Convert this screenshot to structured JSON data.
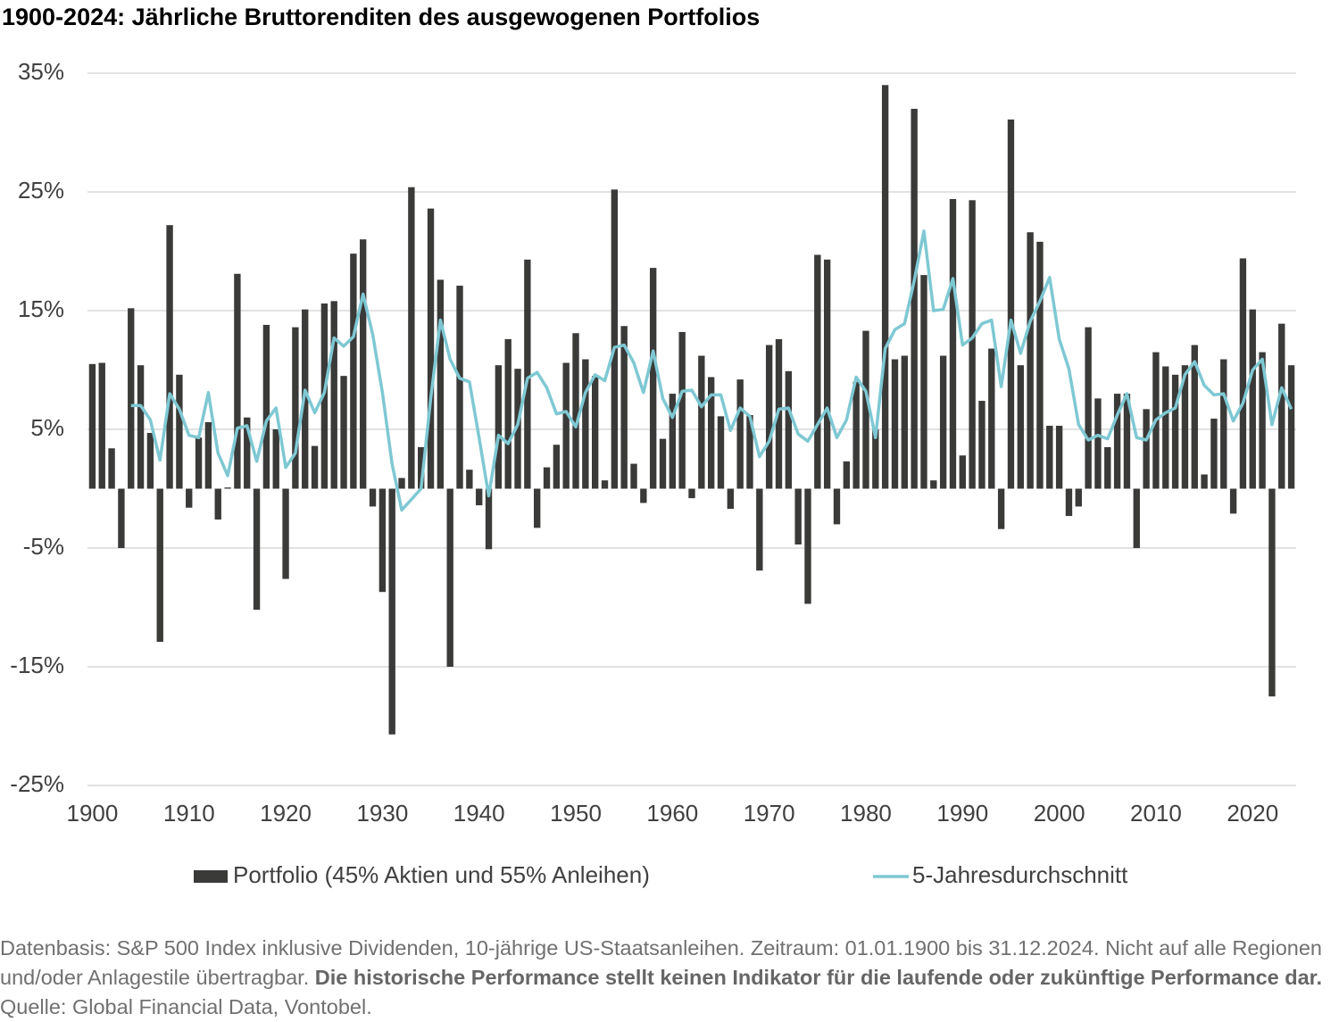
{
  "chart_data": {
    "type": "bar_line",
    "title": "1900-2024: Jährliche Bruttorenditen des ausgewogenen Portfolios",
    "x": [
      1900,
      1901,
      1902,
      1903,
      1904,
      1905,
      1906,
      1907,
      1908,
      1909,
      1910,
      1911,
      1912,
      1913,
      1914,
      1915,
      1916,
      1917,
      1918,
      1919,
      1920,
      1921,
      1922,
      1923,
      1924,
      1925,
      1926,
      1927,
      1928,
      1929,
      1930,
      1931,
      1932,
      1933,
      1934,
      1935,
      1936,
      1937,
      1938,
      1939,
      1940,
      1941,
      1942,
      1943,
      1944,
      1945,
      1946,
      1947,
      1948,
      1949,
      1950,
      1951,
      1952,
      1953,
      1954,
      1955,
      1956,
      1957,
      1958,
      1959,
      1960,
      1961,
      1962,
      1963,
      1964,
      1965,
      1966,
      1967,
      1968,
      1969,
      1970,
      1971,
      1972,
      1973,
      1974,
      1975,
      1976,
      1977,
      1978,
      1979,
      1980,
      1981,
      1982,
      1983,
      1984,
      1985,
      1986,
      1987,
      1988,
      1989,
      1990,
      1991,
      1992,
      1993,
      1994,
      1995,
      1996,
      1997,
      1998,
      1999,
      2000,
      2001,
      2002,
      2003,
      2004,
      2005,
      2006,
      2007,
      2008,
      2009,
      2010,
      2011,
      2012,
      2013,
      2014,
      2015,
      2016,
      2017,
      2018,
      2019,
      2020,
      2021,
      2022,
      2023,
      2024
    ],
    "series": [
      {
        "name": "Portfolio (45% Aktien und 55% Anleihen)",
        "type": "bar",
        "color": "#3a3a38",
        "values": [
          10.5,
          10.6,
          3.4,
          -5.0,
          15.2,
          10.4,
          4.7,
          -12.9,
          22.2,
          9.6,
          -1.6,
          4.3,
          5.6,
          -2.6,
          0.1,
          18.1,
          6.0,
          -10.2,
          13.8,
          5.0,
          -7.6,
          13.6,
          15.1,
          3.6,
          15.6,
          15.8,
          9.5,
          19.8,
          21.0,
          -1.5,
          -8.7,
          -20.7,
          0.9,
          25.4,
          3.5,
          23.6,
          17.6,
          -15.0,
          17.1,
          1.6,
          -1.4,
          -5.1,
          10.4,
          12.6,
          10.1,
          19.3,
          -3.3,
          1.8,
          3.7,
          10.6,
          13.1,
          10.9,
          9.5,
          0.7,
          25.2,
          13.7,
          2.1,
          -1.2,
          18.6,
          4.2,
          8.0,
          13.2,
          -0.8,
          11.2,
          9.4,
          6.1,
          -1.7,
          9.2,
          6.2,
          -6.9,
          12.1,
          12.6,
          9.9,
          -4.7,
          -9.7,
          19.7,
          19.3,
          -3.0,
          2.3,
          9.0,
          13.3,
          5.0,
          34.0,
          10.9,
          11.2,
          32.0,
          18.0,
          0.7,
          11.2,
          24.4,
          2.8,
          24.3,
          7.4,
          11.8,
          -3.4,
          31.1,
          10.4,
          21.6,
          20.8,
          5.3,
          5.3,
          -2.3,
          -1.5,
          13.6,
          7.6,
          3.5,
          8.0,
          8.0,
          -5.0,
          6.7,
          11.5,
          10.3,
          9.6,
          10.4,
          12.1,
          1.2,
          5.9,
          10.9,
          -2.1,
          19.4,
          15.1,
          11.5,
          -17.5,
          13.9,
          10.4
        ]
      },
      {
        "name": "5-Jahresdurchschnitt",
        "type": "line",
        "color": "#7ec8d3",
        "values": [
          null,
          null,
          null,
          null,
          7.0,
          7.0,
          5.8,
          2.4,
          8.0,
          6.7,
          4.5,
          4.3,
          8.1,
          3.0,
          1.1,
          5.1,
          5.3,
          2.3,
          5.7,
          6.8,
          1.8,
          3.0,
          8.3,
          6.4,
          8.1,
          12.7,
          12.0,
          12.8,
          16.4,
          13.0,
          8.1,
          2.1,
          -1.8,
          -0.9,
          0.0,
          7.6,
          14.2,
          10.9,
          9.3,
          9.0,
          4.3,
          -0.6,
          4.5,
          3.8,
          5.4,
          9.3,
          9.8,
          8.5,
          6.3,
          6.5,
          5.2,
          8.1,
          9.6,
          9.1,
          11.9,
          12.1,
          10.6,
          8.1,
          11.6,
          7.6,
          6.0,
          8.2,
          8.3,
          6.9,
          7.9,
          7.9,
          4.9,
          6.8,
          6.1,
          2.7,
          4.0,
          6.7,
          6.8,
          4.6,
          4.0,
          5.4,
          6.8,
          4.3,
          5.8,
          9.4,
          8.2,
          4.3,
          11.8,
          13.4,
          13.9,
          17.5,
          21.7,
          15.0,
          15.1,
          17.7,
          12.1,
          12.7,
          13.9,
          14.2,
          8.6,
          14.2,
          11.4,
          14.1,
          15.8,
          17.8,
          12.6,
          10.1,
          5.4,
          4.1,
          4.5,
          4.2,
          6.2,
          8.0,
          4.3,
          4.1,
          5.8,
          6.4,
          6.8,
          9.6,
          10.7,
          8.7,
          7.9,
          8.0,
          5.7,
          7.2,
          10.0,
          10.9,
          5.4,
          8.5,
          6.7
        ]
      }
    ],
    "xlim": [
      1899.5,
      2024.5
    ],
    "xticks": [
      1900,
      1910,
      1920,
      1930,
      1940,
      1950,
      1960,
      1970,
      1980,
      1990,
      2000,
      2010,
      2020
    ],
    "ylim": [
      -25,
      35
    ],
    "yticks": [
      {
        "value": 35,
        "label": "35%"
      },
      {
        "value": 25,
        "label": "25%"
      },
      {
        "value": 15,
        "label": "15%"
      },
      {
        "value": 5,
        "label": "5%"
      },
      {
        "value": -5,
        "label": "-5%"
      },
      {
        "value": -15,
        "label": "-15%"
      },
      {
        "value": -25,
        "label": "-25%"
      }
    ],
    "grid": true,
    "footnote": [
      "Datenbasis: S&P 500 Index inklusive Dividenden, 10-jährige US-Staatsanleihen. Zeitraum: 01.01.1900 bis 31.12.2024. Nicht auf alle Regionen und/oder Anlagestile übertragbar. ",
      "Die historische Performance stellt keinen Indikator für die laufende oder zukünftige Performance dar.",
      " Quelle: Global Financial Data, Vontobel."
    ]
  }
}
